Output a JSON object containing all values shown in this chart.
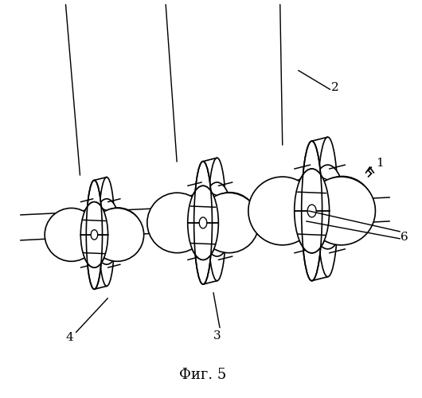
{
  "caption": "Фиг. 5",
  "bg_color": "#ffffff",
  "lc": "#000000",
  "lw": 1.2,
  "fig_width": 5.3,
  "fig_height": 5.0,
  "dpi": 100
}
